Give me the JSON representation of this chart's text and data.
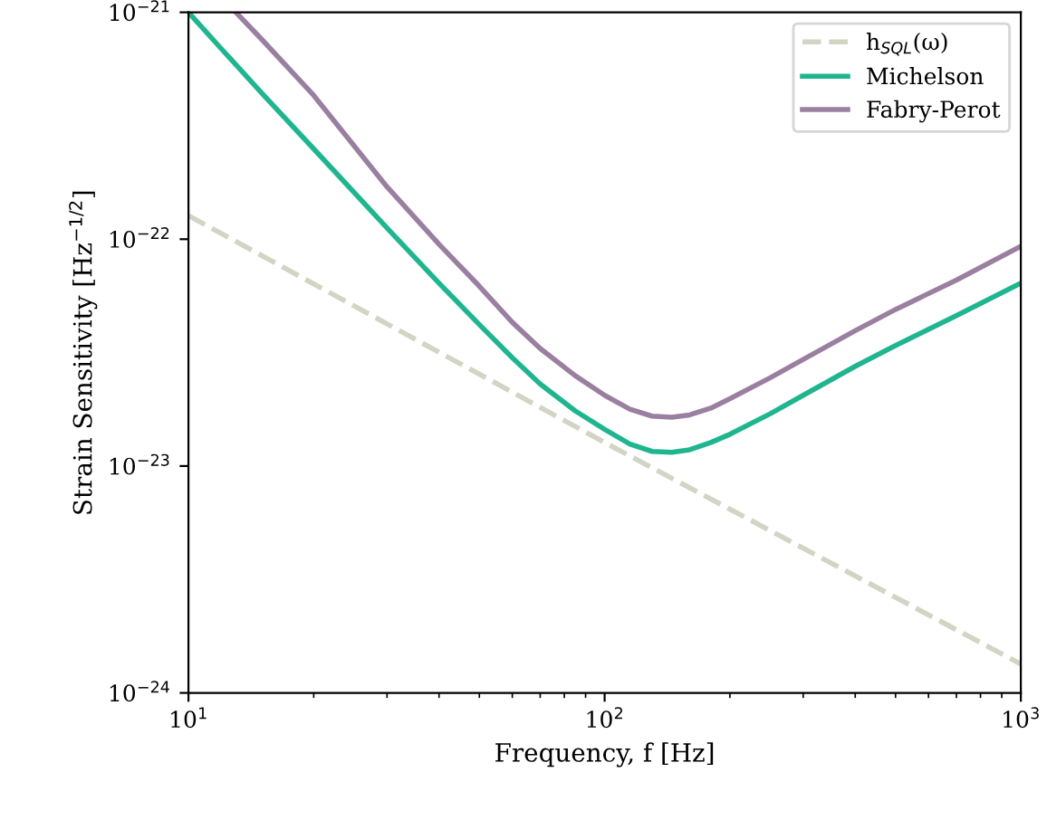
{
  "chart_data": {
    "type": "line",
    "xlabel": "Frequency, f [Hz]",
    "ylabel": "Strain Sensitivity [Hz$^{−1/2}$]",
    "log": "xy",
    "xlim": [
      10,
      1000
    ],
    "ylim": [
      1e-24,
      1e-21
    ],
    "xticks": [
      {
        "value": 10,
        "label": "10$^{1}$"
      },
      {
        "value": 100,
        "label": "10$^{2}$"
      },
      {
        "value": 1000,
        "label": "10$^{3}$"
      }
    ],
    "yticks": [
      {
        "value": 1e-24,
        "label": "10$^{−24}$"
      },
      {
        "value": 1e-23,
        "label": "10$^{−23}$"
      },
      {
        "value": 1e-22,
        "label": "10$^{−22}$"
      },
      {
        "value": 1e-21,
        "label": "10$^{−21}$"
      }
    ],
    "grid": false,
    "legend": "top right",
    "marker": "none",
    "series": [
      {
        "name": "h$_{SQL}$(ω)",
        "color": "#d3d4c4",
        "line_style": "dashed",
        "x": [
          10,
          100,
          1000
        ],
        "values": [
          1.27e-22,
          1.27e-23,
          1.34e-24
        ]
      },
      {
        "name": "Michelson",
        "color": "#1fb58f",
        "line_style": "solid",
        "x": [
          10,
          12,
          15,
          20,
          30,
          40,
          50,
          60,
          70,
          85,
          100,
          115,
          130,
          145,
          160,
          180,
          200,
          250,
          300,
          400,
          500,
          700,
          1000
        ],
        "values": [
          1e-21,
          6.9e-22,
          4.4e-22,
          2.5e-22,
          1.12e-22,
          6.4e-23,
          4.2e-23,
          3e-23,
          2.3e-23,
          1.75e-23,
          1.45e-23,
          1.25e-23,
          1.16e-23,
          1.15e-23,
          1.18e-23,
          1.27e-23,
          1.38e-23,
          1.7e-23,
          2.05e-23,
          2.75e-23,
          3.4e-23,
          4.6e-23,
          6.4e-23
        ]
      },
      {
        "name": "Fabry-Perot",
        "color": "#9a7fa0",
        "line_style": "solid",
        "x": [
          13,
          15,
          20,
          30,
          40,
          50,
          60,
          70,
          85,
          100,
          115,
          130,
          145,
          160,
          180,
          200,
          250,
          300,
          400,
          500,
          700,
          1000
        ],
        "values": [
          1e-21,
          7.6e-22,
          4.3e-22,
          1.7e-22,
          9.5e-23,
          6.2e-23,
          4.3e-23,
          3.3e-23,
          2.5e-23,
          2.05e-23,
          1.78e-23,
          1.66e-23,
          1.64e-23,
          1.68e-23,
          1.8e-23,
          1.98e-23,
          2.45e-23,
          2.95e-23,
          3.95e-23,
          4.9e-23,
          6.6e-23,
          9.3e-23
        ]
      }
    ]
  }
}
